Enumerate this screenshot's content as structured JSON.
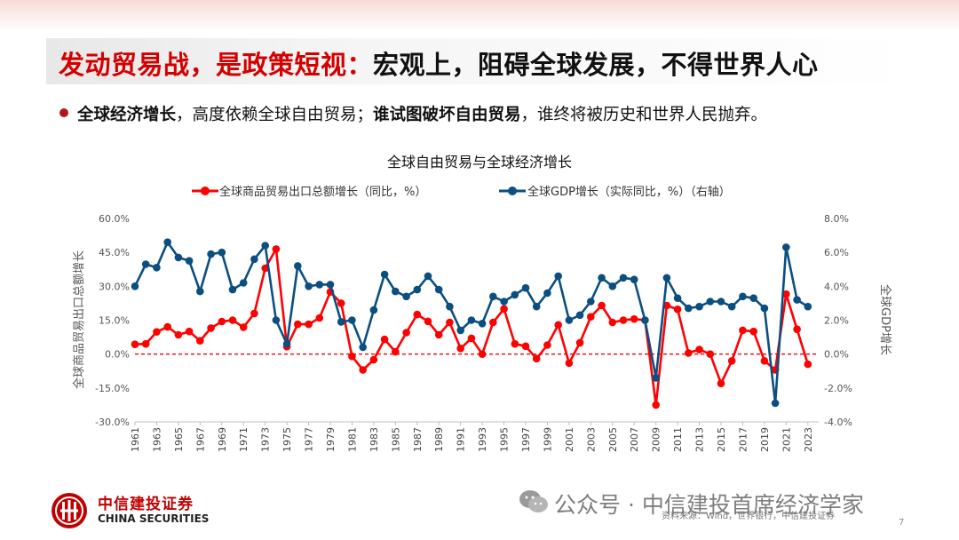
{
  "slide": {
    "title_red": "发动贸易战，是政策短视：",
    "title_black": "宏观上，阻碍全球发展，不得世界人心",
    "bullet": {
      "bold1": "全球经济增长",
      "text1": "，高度依赖全球自由贸易；",
      "bold2": "谁试图破坏自由贸易",
      "text2": "，谁终将被历史和世界人民抛弃。"
    },
    "brand_cn": "中信建投证券",
    "brand_en": "CHINA SECURITIES",
    "watermark": "公众号 · 中信建投首席经济学家",
    "source": "资料来源：Wind，世界银行，中信建投证券",
    "page_number": "7"
  },
  "colors": {
    "red": "#ff0000",
    "blue": "#0b4f80",
    "title_red": "#d40000"
  },
  "chart_data": {
    "type": "line",
    "title": "全球自由贸易与全球经济增长",
    "ylabel_left": "全球商品贸易出口总额增长",
    "ylabel_right": "全球GDP增长",
    "ylim_left": [
      -30,
      60
    ],
    "ylim_right": [
      -4,
      8
    ],
    "yticks_left": [
      "60.0%",
      "45.0%",
      "30.0%",
      "15.0%",
      "0.0%",
      "-15.0%",
      "-30.0%"
    ],
    "yticks_right": [
      "8.0%",
      "6.0%",
      "4.0%",
      "2.0%",
      "0.0%",
      "-2.0%",
      "-4.0%"
    ],
    "x_start": 1961,
    "x_end": 2024,
    "xticks": [
      "1961",
      "1963",
      "1965",
      "1967",
      "1969",
      "1971",
      "1973",
      "1975",
      "1977",
      "1979",
      "1981",
      "1983",
      "1985",
      "1987",
      "1989",
      "1991",
      "1993",
      "1995",
      "1997",
      "1999",
      "2001",
      "2003",
      "2005",
      "2007",
      "2009",
      "2011",
      "2013",
      "2015",
      "2017",
      "2019",
      "2021",
      "2023"
    ],
    "legend_position": "top",
    "reference_line": 0,
    "series": [
      {
        "name": "全球商品贸易出口总额增长（同比，%）",
        "axis": "left",
        "color": "#ff0000",
        "values": [
          4.3,
          4.5,
          9.8,
          12.0,
          8.5,
          10.0,
          5.9,
          11.5,
          14.4,
          15.0,
          11.9,
          18.0,
          38.0,
          46.5,
          3.3,
          13.2,
          13.2,
          16.0,
          27.5,
          22.5,
          -1.0,
          -7.0,
          -2.5,
          6.5,
          1.0,
          9.5,
          17.5,
          14.5,
          8.5,
          14.0,
          2.5,
          7.0,
          0.0,
          14.0,
          20.0,
          4.5,
          3.5,
          -2.0,
          4.0,
          12.9,
          -4.0,
          5.0,
          16.5,
          21.5,
          14.0,
          15.0,
          15.5,
          15.0,
          -22.5,
          21.5,
          19.8,
          0.5,
          2.0,
          0.0,
          -13.0,
          -3.0,
          10.5,
          10.0,
          -3.0,
          -7.0,
          26.5,
          11.0,
          -4.5
        ]
      },
      {
        "name": "全球GDP增长（实际同比，%）（右轴）",
        "axis": "right",
        "color": "#0b4f80",
        "values": [
          4.0,
          5.3,
          5.1,
          6.6,
          5.7,
          5.5,
          3.7,
          5.9,
          6.0,
          3.8,
          4.2,
          5.6,
          6.4,
          2.0,
          0.6,
          5.2,
          4.0,
          4.1,
          4.1,
          1.9,
          2.0,
          0.4,
          2.6,
          4.7,
          3.7,
          3.4,
          3.8,
          4.6,
          3.8,
          2.8,
          1.4,
          2.0,
          1.8,
          3.4,
          3.1,
          3.5,
          3.9,
          2.8,
          3.6,
          4.6,
          2.0,
          2.3,
          3.1,
          4.5,
          4.0,
          4.5,
          4.4,
          2.0,
          -1.4,
          4.5,
          3.3,
          2.7,
          2.8,
          3.1,
          3.1,
          2.8,
          3.4,
          3.3,
          2.7,
          -2.9,
          6.3,
          3.2,
          2.8
        ]
      }
    ]
  }
}
